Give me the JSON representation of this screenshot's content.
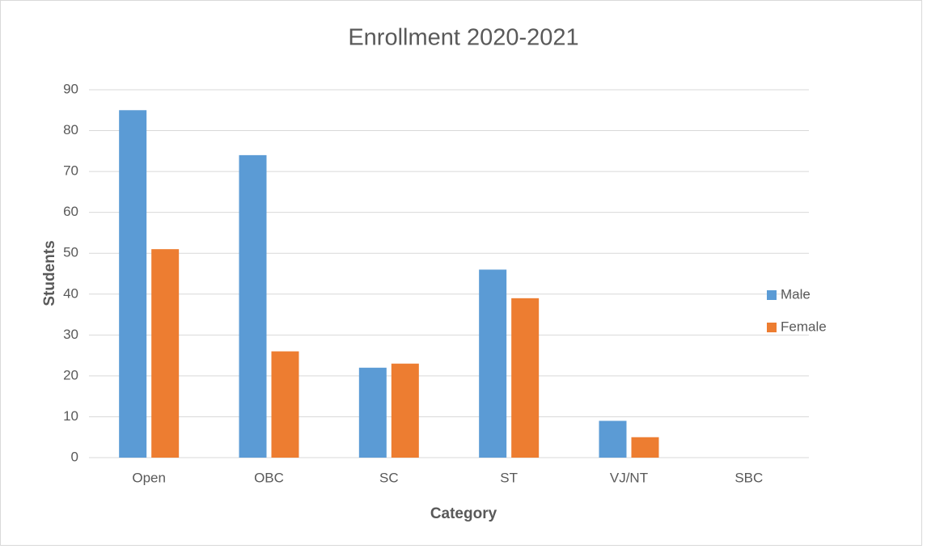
{
  "chart_data": {
    "type": "bar",
    "title": "Enrollment 2020-2021",
    "x_label": "Category",
    "y_label": "Students",
    "categories": [
      "Open",
      "OBC",
      "SC",
      "ST",
      "VJ/NT",
      "SBC"
    ],
    "series": [
      {
        "name": "Male",
        "color": "#5b9bd5",
        "values": [
          85,
          74,
          22,
          46,
          9,
          0
        ]
      },
      {
        "name": "Female",
        "color": "#ed7d31",
        "values": [
          51,
          26,
          23,
          39,
          5,
          0
        ]
      }
    ],
    "ylim": [
      0,
      90
    ],
    "yticks": [
      0,
      10,
      20,
      30,
      40,
      50,
      60,
      70,
      80,
      90
    ],
    "grid": true,
    "legend": "right"
  }
}
